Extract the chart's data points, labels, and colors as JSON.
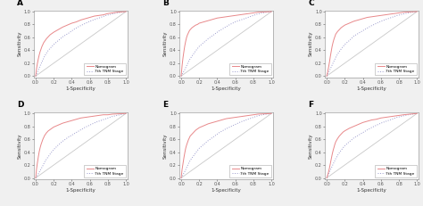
{
  "panels": [
    "A",
    "B",
    "C",
    "D",
    "E",
    "F"
  ],
  "nomogram_color": "#E8888A",
  "tnm_color": "#9999CC",
  "diagonal_color": "#C8C8C8",
  "xlabel": "1-Specificity",
  "ylabel": "Sensitivity",
  "legend_nomogram": "Nomogram",
  "legend_tnm": "7th TNM Stage",
  "xtick_labels": [
    "0.0",
    "0.2",
    "0.4",
    "0.6",
    "0.8",
    "1.0"
  ],
  "ytick_labels": [
    "0.0",
    "0.2",
    "0.4",
    "0.6",
    "0.8",
    "1.0"
  ],
  "xticks": [
    0.0,
    0.2,
    0.4,
    0.6,
    0.8,
    1.0
  ],
  "yticks": [
    0.0,
    0.2,
    0.4,
    0.6,
    0.8,
    1.0
  ],
  "curves": {
    "A": {
      "nomogram": [
        [
          0,
          0
        ],
        [
          0.01,
          0.12
        ],
        [
          0.02,
          0.2
        ],
        [
          0.03,
          0.27
        ],
        [
          0.04,
          0.33
        ],
        [
          0.05,
          0.38
        ],
        [
          0.06,
          0.42
        ],
        [
          0.07,
          0.46
        ],
        [
          0.08,
          0.49
        ],
        [
          0.09,
          0.52
        ],
        [
          0.1,
          0.54
        ],
        [
          0.12,
          0.58
        ],
        [
          0.14,
          0.61
        ],
        [
          0.16,
          0.64
        ],
        [
          0.18,
          0.66
        ],
        [
          0.2,
          0.68
        ],
        [
          0.25,
          0.72
        ],
        [
          0.3,
          0.76
        ],
        [
          0.35,
          0.79
        ],
        [
          0.4,
          0.82
        ],
        [
          0.45,
          0.84
        ],
        [
          0.5,
          0.87
        ],
        [
          0.55,
          0.89
        ],
        [
          0.6,
          0.91
        ],
        [
          0.65,
          0.93
        ],
        [
          0.7,
          0.94
        ],
        [
          0.75,
          0.95
        ],
        [
          0.8,
          0.97
        ],
        [
          0.85,
          0.98
        ],
        [
          0.9,
          0.99
        ],
        [
          1.0,
          1.0
        ]
      ],
      "tnm": [
        [
          0,
          0
        ],
        [
          0.02,
          0.06
        ],
        [
          0.04,
          0.13
        ],
        [
          0.06,
          0.19
        ],
        [
          0.08,
          0.25
        ],
        [
          0.1,
          0.31
        ],
        [
          0.13,
          0.38
        ],
        [
          0.16,
          0.43
        ],
        [
          0.2,
          0.49
        ],
        [
          0.25,
          0.55
        ],
        [
          0.3,
          0.61
        ],
        [
          0.36,
          0.66
        ],
        [
          0.42,
          0.72
        ],
        [
          0.48,
          0.77
        ],
        [
          0.54,
          0.81
        ],
        [
          0.6,
          0.85
        ],
        [
          0.66,
          0.88
        ],
        [
          0.72,
          0.91
        ],
        [
          0.78,
          0.94
        ],
        [
          0.84,
          0.96
        ],
        [
          0.9,
          0.98
        ],
        [
          1.0,
          1.0
        ]
      ]
    },
    "B": {
      "nomogram": [
        [
          0,
          0
        ],
        [
          0.01,
          0.16
        ],
        [
          0.02,
          0.28
        ],
        [
          0.03,
          0.38
        ],
        [
          0.04,
          0.47
        ],
        [
          0.05,
          0.54
        ],
        [
          0.06,
          0.6
        ],
        [
          0.07,
          0.64
        ],
        [
          0.08,
          0.67
        ],
        [
          0.09,
          0.7
        ],
        [
          0.1,
          0.72
        ],
        [
          0.12,
          0.75
        ],
        [
          0.14,
          0.77
        ],
        [
          0.16,
          0.79
        ],
        [
          0.18,
          0.8
        ],
        [
          0.2,
          0.82
        ],
        [
          0.25,
          0.84
        ],
        [
          0.3,
          0.86
        ],
        [
          0.35,
          0.88
        ],
        [
          0.4,
          0.9
        ],
        [
          0.45,
          0.91
        ],
        [
          0.5,
          0.92
        ],
        [
          0.55,
          0.93
        ],
        [
          0.6,
          0.94
        ],
        [
          0.65,
          0.95
        ],
        [
          0.7,
          0.96
        ],
        [
          0.75,
          0.97
        ],
        [
          0.8,
          0.98
        ],
        [
          0.85,
          0.99
        ],
        [
          1.0,
          1.0
        ]
      ],
      "tnm": [
        [
          0,
          0
        ],
        [
          0.02,
          0.05
        ],
        [
          0.04,
          0.1
        ],
        [
          0.06,
          0.16
        ],
        [
          0.08,
          0.22
        ],
        [
          0.1,
          0.27
        ],
        [
          0.13,
          0.33
        ],
        [
          0.16,
          0.39
        ],
        [
          0.2,
          0.46
        ],
        [
          0.25,
          0.52
        ],
        [
          0.3,
          0.58
        ],
        [
          0.36,
          0.64
        ],
        [
          0.42,
          0.7
        ],
        [
          0.48,
          0.75
        ],
        [
          0.54,
          0.8
        ],
        [
          0.6,
          0.84
        ],
        [
          0.66,
          0.87
        ],
        [
          0.72,
          0.9
        ],
        [
          0.78,
          0.93
        ],
        [
          0.84,
          0.96
        ],
        [
          0.9,
          0.98
        ],
        [
          1.0,
          1.0
        ]
      ]
    },
    "C": {
      "nomogram": [
        [
          0,
          0
        ],
        [
          0.01,
          0.06
        ],
        [
          0.02,
          0.13
        ],
        [
          0.03,
          0.21
        ],
        [
          0.04,
          0.3
        ],
        [
          0.05,
          0.38
        ],
        [
          0.06,
          0.46
        ],
        [
          0.07,
          0.52
        ],
        [
          0.08,
          0.57
        ],
        [
          0.09,
          0.61
        ],
        [
          0.1,
          0.65
        ],
        [
          0.12,
          0.69
        ],
        [
          0.14,
          0.72
        ],
        [
          0.16,
          0.75
        ],
        [
          0.18,
          0.77
        ],
        [
          0.2,
          0.79
        ],
        [
          0.25,
          0.82
        ],
        [
          0.3,
          0.85
        ],
        [
          0.35,
          0.87
        ],
        [
          0.4,
          0.89
        ],
        [
          0.45,
          0.91
        ],
        [
          0.5,
          0.92
        ],
        [
          0.55,
          0.93
        ],
        [
          0.6,
          0.94
        ],
        [
          0.65,
          0.95
        ],
        [
          0.7,
          0.96
        ],
        [
          0.75,
          0.97
        ],
        [
          0.8,
          0.98
        ],
        [
          0.85,
          0.99
        ],
        [
          1.0,
          1.0
        ]
      ],
      "tnm": [
        [
          0,
          0
        ],
        [
          0.02,
          0.05
        ],
        [
          0.04,
          0.11
        ],
        [
          0.06,
          0.17
        ],
        [
          0.08,
          0.23
        ],
        [
          0.1,
          0.29
        ],
        [
          0.13,
          0.36
        ],
        [
          0.16,
          0.42
        ],
        [
          0.2,
          0.49
        ],
        [
          0.25,
          0.55
        ],
        [
          0.3,
          0.62
        ],
        [
          0.36,
          0.67
        ],
        [
          0.42,
          0.72
        ],
        [
          0.48,
          0.77
        ],
        [
          0.54,
          0.81
        ],
        [
          0.6,
          0.85
        ],
        [
          0.66,
          0.88
        ],
        [
          0.72,
          0.91
        ],
        [
          0.78,
          0.94
        ],
        [
          0.84,
          0.96
        ],
        [
          0.9,
          0.98
        ],
        [
          1.0,
          1.0
        ]
      ]
    },
    "D": {
      "nomogram": [
        [
          0,
          0
        ],
        [
          0.01,
          0.14
        ],
        [
          0.02,
          0.24
        ],
        [
          0.03,
          0.33
        ],
        [
          0.04,
          0.41
        ],
        [
          0.05,
          0.47
        ],
        [
          0.06,
          0.52
        ],
        [
          0.07,
          0.56
        ],
        [
          0.08,
          0.6
        ],
        [
          0.09,
          0.63
        ],
        [
          0.1,
          0.66
        ],
        [
          0.12,
          0.7
        ],
        [
          0.14,
          0.73
        ],
        [
          0.16,
          0.75
        ],
        [
          0.18,
          0.77
        ],
        [
          0.2,
          0.79
        ],
        [
          0.25,
          0.82
        ],
        [
          0.3,
          0.85
        ],
        [
          0.35,
          0.87
        ],
        [
          0.4,
          0.89
        ],
        [
          0.45,
          0.91
        ],
        [
          0.5,
          0.93
        ],
        [
          0.55,
          0.94
        ],
        [
          0.6,
          0.95
        ],
        [
          0.65,
          0.96
        ],
        [
          0.7,
          0.97
        ],
        [
          0.75,
          0.98
        ],
        [
          0.8,
          0.98
        ],
        [
          0.85,
          0.99
        ],
        [
          1.0,
          1.0
        ]
      ],
      "tnm": [
        [
          0,
          0
        ],
        [
          0.02,
          0.04
        ],
        [
          0.04,
          0.09
        ],
        [
          0.06,
          0.14
        ],
        [
          0.08,
          0.19
        ],
        [
          0.1,
          0.25
        ],
        [
          0.13,
          0.31
        ],
        [
          0.16,
          0.37
        ],
        [
          0.2,
          0.44
        ],
        [
          0.25,
          0.51
        ],
        [
          0.3,
          0.57
        ],
        [
          0.36,
          0.63
        ],
        [
          0.42,
          0.68
        ],
        [
          0.48,
          0.73
        ],
        [
          0.54,
          0.78
        ],
        [
          0.6,
          0.82
        ],
        [
          0.66,
          0.86
        ],
        [
          0.72,
          0.89
        ],
        [
          0.78,
          0.92
        ],
        [
          0.84,
          0.95
        ],
        [
          0.9,
          0.97
        ],
        [
          1.0,
          1.0
        ]
      ]
    },
    "E": {
      "nomogram": [
        [
          0,
          0
        ],
        [
          0.01,
          0.13
        ],
        [
          0.02,
          0.22
        ],
        [
          0.03,
          0.31
        ],
        [
          0.04,
          0.39
        ],
        [
          0.05,
          0.46
        ],
        [
          0.06,
          0.51
        ],
        [
          0.07,
          0.55
        ],
        [
          0.08,
          0.59
        ],
        [
          0.09,
          0.62
        ],
        [
          0.1,
          0.65
        ],
        [
          0.12,
          0.68
        ],
        [
          0.14,
          0.71
        ],
        [
          0.16,
          0.74
        ],
        [
          0.18,
          0.76
        ],
        [
          0.2,
          0.78
        ],
        [
          0.25,
          0.81
        ],
        [
          0.3,
          0.84
        ],
        [
          0.35,
          0.86
        ],
        [
          0.4,
          0.88
        ],
        [
          0.45,
          0.9
        ],
        [
          0.5,
          0.92
        ],
        [
          0.55,
          0.93
        ],
        [
          0.6,
          0.94
        ],
        [
          0.65,
          0.95
        ],
        [
          0.7,
          0.96
        ],
        [
          0.75,
          0.97
        ],
        [
          0.8,
          0.98
        ],
        [
          0.85,
          0.99
        ],
        [
          1.0,
          1.0
        ]
      ],
      "tnm": [
        [
          0,
          0
        ],
        [
          0.02,
          0.05
        ],
        [
          0.04,
          0.1
        ],
        [
          0.06,
          0.16
        ],
        [
          0.08,
          0.22
        ],
        [
          0.1,
          0.27
        ],
        [
          0.13,
          0.33
        ],
        [
          0.16,
          0.39
        ],
        [
          0.2,
          0.46
        ],
        [
          0.25,
          0.52
        ],
        [
          0.3,
          0.58
        ],
        [
          0.36,
          0.64
        ],
        [
          0.42,
          0.7
        ],
        [
          0.48,
          0.75
        ],
        [
          0.54,
          0.79
        ],
        [
          0.6,
          0.83
        ],
        [
          0.66,
          0.87
        ],
        [
          0.72,
          0.9
        ],
        [
          0.78,
          0.93
        ],
        [
          0.84,
          0.96
        ],
        [
          0.9,
          0.98
        ],
        [
          1.0,
          1.0
        ]
      ]
    },
    "F": {
      "nomogram": [
        [
          0,
          0
        ],
        [
          0.01,
          0.04
        ],
        [
          0.02,
          0.09
        ],
        [
          0.03,
          0.15
        ],
        [
          0.04,
          0.22
        ],
        [
          0.05,
          0.29
        ],
        [
          0.06,
          0.36
        ],
        [
          0.07,
          0.42
        ],
        [
          0.08,
          0.47
        ],
        [
          0.09,
          0.52
        ],
        [
          0.1,
          0.56
        ],
        [
          0.12,
          0.61
        ],
        [
          0.14,
          0.65
        ],
        [
          0.16,
          0.68
        ],
        [
          0.18,
          0.71
        ],
        [
          0.2,
          0.73
        ],
        [
          0.25,
          0.77
        ],
        [
          0.3,
          0.8
        ],
        [
          0.35,
          0.83
        ],
        [
          0.4,
          0.86
        ],
        [
          0.45,
          0.88
        ],
        [
          0.5,
          0.9
        ],
        [
          0.55,
          0.91
        ],
        [
          0.6,
          0.93
        ],
        [
          0.65,
          0.94
        ],
        [
          0.7,
          0.95
        ],
        [
          0.75,
          0.96
        ],
        [
          0.8,
          0.97
        ],
        [
          0.85,
          0.98
        ],
        [
          1.0,
          1.0
        ]
      ],
      "tnm": [
        [
          0,
          0
        ],
        [
          0.02,
          0.06
        ],
        [
          0.04,
          0.12
        ],
        [
          0.06,
          0.18
        ],
        [
          0.08,
          0.24
        ],
        [
          0.1,
          0.3
        ],
        [
          0.13,
          0.37
        ],
        [
          0.16,
          0.43
        ],
        [
          0.2,
          0.5
        ],
        [
          0.25,
          0.56
        ],
        [
          0.3,
          0.62
        ],
        [
          0.36,
          0.67
        ],
        [
          0.42,
          0.72
        ],
        [
          0.48,
          0.77
        ],
        [
          0.54,
          0.81
        ],
        [
          0.6,
          0.85
        ],
        [
          0.66,
          0.88
        ],
        [
          0.72,
          0.91
        ],
        [
          0.78,
          0.94
        ],
        [
          0.84,
          0.96
        ],
        [
          0.9,
          0.98
        ],
        [
          1.0,
          1.0
        ]
      ]
    }
  }
}
